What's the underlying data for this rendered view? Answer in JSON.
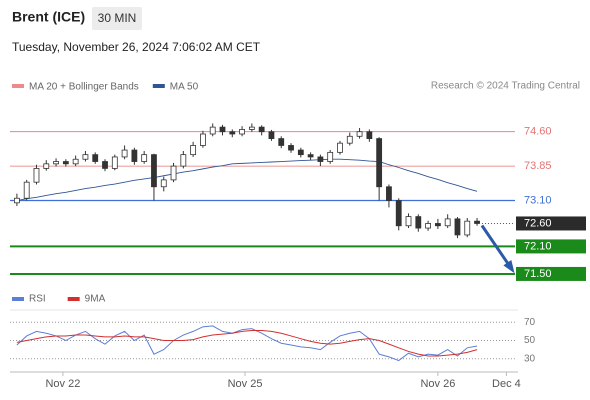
{
  "chart_data": {
    "type": "candlestick",
    "title": "Brent (ICE)",
    "interval": "30 MIN",
    "timestamp": "Tuesday, November 26, 2024 7:06:02 AM CET",
    "credit": "Research © 2024 Trading Central",
    "ylim": [
      71.15,
      75.4
    ],
    "xlim": [
      -0.5,
      52
    ],
    "xticks": [
      {
        "value": 4.7,
        "label": "Nov 22"
      },
      {
        "value": 23.3,
        "label": "Nov 25"
      },
      {
        "value": 43,
        "label": "Nov 26"
      },
      {
        "value": 50,
        "label": "Dec 4"
      }
    ],
    "candle_color": "#333333",
    "open": [
      73.05,
      73.15,
      73.5,
      73.8,
      73.9,
      73.95,
      73.9,
      74.0,
      74.1,
      73.95,
      73.8,
      74.05,
      74.2,
      73.95,
      74.1,
      73.4,
      73.55,
      73.85,
      74.1,
      74.3,
      74.55,
      74.7,
      74.6,
      74.55,
      74.65,
      74.7,
      74.6,
      74.45,
      74.3,
      74.2,
      74.1,
      74.05,
      73.95,
      74.15,
      74.35,
      74.5,
      74.6,
      74.45,
      73.4,
      73.1,
      72.55,
      72.75,
      72.5,
      72.6,
      72.55,
      72.7,
      72.35,
      72.65
    ],
    "high": [
      73.25,
      73.55,
      73.88,
      73.98,
      74.02,
      74.0,
      74.08,
      74.18,
      74.15,
      74.0,
      74.1,
      74.3,
      74.25,
      74.18,
      74.12,
      73.62,
      73.92,
      74.18,
      74.38,
      74.62,
      74.78,
      74.75,
      74.65,
      74.72,
      74.78,
      74.74,
      74.64,
      74.5,
      74.35,
      74.25,
      74.15,
      74.1,
      74.2,
      74.4,
      74.58,
      74.68,
      74.65,
      74.48,
      73.45,
      73.15,
      72.82,
      72.8,
      72.66,
      72.7,
      72.8,
      72.74,
      72.72,
      72.72
    ],
    "low": [
      72.98,
      73.1,
      73.45,
      73.75,
      73.84,
      73.84,
      73.85,
      73.95,
      73.9,
      73.74,
      73.76,
      74.0,
      73.88,
      73.9,
      73.1,
      73.3,
      73.5,
      73.8,
      74.05,
      74.25,
      74.5,
      74.52,
      74.48,
      74.5,
      74.6,
      74.52,
      74.4,
      74.24,
      74.14,
      74.04,
      73.98,
      73.85,
      73.9,
      74.1,
      74.3,
      74.45,
      74.38,
      73.1,
      72.95,
      72.45,
      72.5,
      72.42,
      72.44,
      72.48,
      72.5,
      72.28,
      72.3,
      72.55
    ],
    "close": [
      73.15,
      73.5,
      73.8,
      73.9,
      73.95,
      73.9,
      74.0,
      74.1,
      73.95,
      73.8,
      74.05,
      74.2,
      73.95,
      74.1,
      73.4,
      73.55,
      73.85,
      74.1,
      74.3,
      74.55,
      74.7,
      74.6,
      74.55,
      74.65,
      74.7,
      74.6,
      74.45,
      74.3,
      74.2,
      74.1,
      74.05,
      73.95,
      74.15,
      74.35,
      74.5,
      74.6,
      74.45,
      73.4,
      73.1,
      72.55,
      72.75,
      72.5,
      72.6,
      72.55,
      72.7,
      72.35,
      72.65,
      72.6
    ],
    "indicators": [
      {
        "name": "MA 20 + Bollinger Bands",
        "color": "#f08a8a"
      },
      {
        "name": "MA 50",
        "color": "#2f5597",
        "values": [
          73.1,
          73.14,
          73.17,
          73.21,
          73.25,
          73.28,
          73.32,
          73.36,
          73.39,
          73.43,
          73.46,
          73.5,
          73.54,
          73.57,
          73.6,
          73.64,
          73.68,
          73.72,
          73.75,
          73.79,
          73.83,
          73.86,
          73.9,
          73.91,
          73.92,
          73.93,
          73.94,
          73.95,
          73.96,
          73.97,
          73.98,
          73.99,
          74.0,
          74.0,
          73.99,
          73.98,
          73.96,
          73.95,
          73.88,
          73.82,
          73.75,
          73.69,
          73.62,
          73.56,
          73.49,
          73.43,
          73.36,
          73.3
        ]
      }
    ],
    "levels": [
      {
        "value": 74.6,
        "label": "74.60",
        "color": "#e57373",
        "style": "thin"
      },
      {
        "value": 73.85,
        "label": "73.85",
        "color": "#e57373",
        "style": "thin"
      },
      {
        "value": 73.1,
        "label": "73.10",
        "color": "#3f6fd8",
        "style": "line"
      },
      {
        "value": 72.6,
        "label": "72.60",
        "color": "#2b2b2b",
        "style": "current"
      },
      {
        "value": 72.1,
        "label": "72.10",
        "color": "#1a8a1a",
        "style": "thick"
      },
      {
        "value": 71.5,
        "label": "71.50",
        "color": "#1a8a1a",
        "style": "thick"
      }
    ],
    "rsi": {
      "ylim": [
        22,
        78
      ],
      "yticks": [
        30,
        50,
        70
      ],
      "series": [
        {
          "name": "RSI",
          "color": "#5b7fd6",
          "values": [
            45,
            55,
            60,
            58,
            55,
            50,
            56,
            60,
            52,
            46,
            55,
            60,
            50,
            56,
            35,
            40,
            50,
            56,
            60,
            65,
            66,
            60,
            58,
            62,
            63,
            58,
            52,
            47,
            45,
            43,
            42,
            40,
            48,
            55,
            58,
            60,
            52,
            35,
            32,
            28,
            36,
            32,
            35,
            34,
            40,
            33,
            42,
            44
          ]
        },
        {
          "name": "9MA",
          "color": "#d32f2f",
          "values": [
            48,
            50,
            52,
            54,
            55,
            55,
            56,
            56,
            55,
            54,
            54,
            55,
            54,
            54,
            52,
            50,
            50,
            50,
            51,
            54,
            56,
            57,
            58,
            60,
            61,
            61,
            60,
            58,
            55,
            52,
            49,
            47,
            46,
            47,
            49,
            51,
            52,
            50,
            46,
            42,
            38,
            35,
            33,
            33,
            34,
            35,
            37,
            40
          ]
        }
      ]
    }
  }
}
